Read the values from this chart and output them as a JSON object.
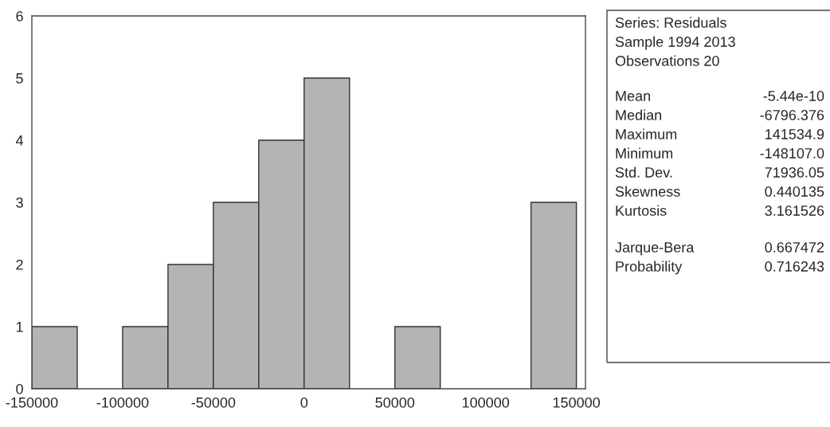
{
  "chart_data": {
    "type": "histogram",
    "bins": [
      -150000,
      -125000,
      -100000,
      -75000,
      -50000,
      -25000,
      0,
      25000,
      50000,
      75000,
      100000,
      125000,
      150000
    ],
    "values": [
      1,
      0,
      1,
      2,
      3,
      4,
      5,
      0,
      1,
      0,
      0,
      3
    ],
    "color": "#b4b4b4",
    "xlim": [
      -150000,
      155000
    ],
    "xticks": [
      -150000,
      -100000,
      -50000,
      0,
      50000,
      100000,
      150000
    ],
    "ylim": [
      0,
      6
    ],
    "yticks": [
      0,
      1,
      2,
      3,
      4,
      5,
      6
    ],
    "grid": false,
    "legend": false,
    "annotations": [
      "Series: Residuals",
      "Sample 1994 2013",
      "Observations 20",
      "Mean",
      "-5.44e-10",
      "Median",
      "-6796.376",
      "Maximum",
      "141534.9",
      "Minimum",
      "-148107.0",
      "Std. Dev.",
      "71936.05",
      "Skewness",
      "0.440135",
      "Kurtosis",
      "3.161526",
      "Jarque-Bera",
      "0.667472",
      "Probability",
      "0.716243"
    ]
  }
}
